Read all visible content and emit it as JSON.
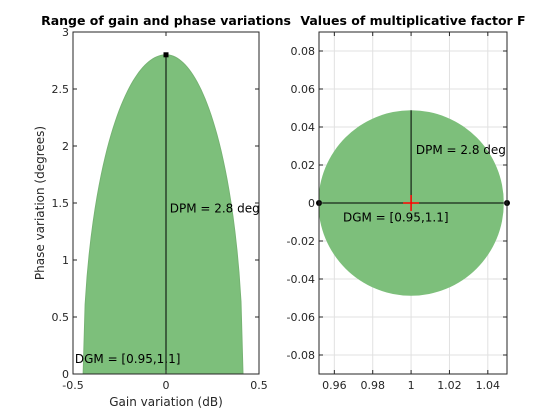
{
  "chart_data": [
    {
      "type": "area",
      "title": "Range of gain and phase variations",
      "xlabel": "Gain variation (dB)",
      "ylabel": "Phase variation (degrees)",
      "xlim": [
        -0.5,
        0.5
      ],
      "ylim": [
        0,
        3
      ],
      "xticks": [
        "-0.5",
        "0",
        "0.5"
      ],
      "yticks": [
        "0",
        "0.5",
        "1",
        "1.5",
        "2",
        "2.5",
        "3"
      ],
      "x_tick_values": [
        -0.5,
        0,
        0.5
      ],
      "y_tick_values": [
        0,
        0.5,
        1,
        1.5,
        2,
        2.5,
        3
      ],
      "grid": false,
      "region": {
        "gain_min_db": -0.4455,
        "gain_max_db": 0.4139,
        "phase_max_deg": 2.8
      },
      "annotations": [
        {
          "text": "DPM = 2.8 deg",
          "x": 0.02,
          "y": 1.45
        },
        {
          "text": "DGM = [0.95,1.1]",
          "x": -0.49,
          "y": 0.13
        }
      ],
      "fill_color": "#7dbf7b",
      "edge_color": "#76b373",
      "line_color": "#000000"
    },
    {
      "type": "area",
      "title": "Values of multiplicative factor F",
      "xlim": [
        0.952,
        1.05
      ],
      "ylim": [
        -0.09,
        0.09
      ],
      "xticks": [
        "0.96",
        "0.98",
        "1",
        "1.02",
        "1.04"
      ],
      "yticks": [
        "-0.08",
        "-0.06",
        "-0.04",
        "-0.02",
        "0",
        "0.02",
        "0.04",
        "0.06",
        "0.08"
      ],
      "x_tick_values": [
        0.96,
        0.98,
        1.0,
        1.02,
        1.04
      ],
      "y_tick_values": [
        -0.08,
        -0.06,
        -0.04,
        -0.02,
        0,
        0.02,
        0.04,
        0.06,
        0.08
      ],
      "grid": true,
      "disk": {
        "center_x": 1.0,
        "center_y": 0.0,
        "radius": 0.0488
      },
      "segments": {
        "gain_min": 0.952,
        "gain_max": 1.05,
        "phase_tip": 0.0488
      },
      "annotations": [
        {
          "text": "DPM = 2.8 deg",
          "x": 1.0025,
          "y": 0.028
        },
        {
          "text": "DGM = [0.95,1.1]",
          "x": 0.9645,
          "y": -0.0075
        }
      ],
      "fill_color": "#7dbf7b",
      "marker_color": "#ff0000",
      "grid_color": "#e1e1e1"
    }
  ]
}
